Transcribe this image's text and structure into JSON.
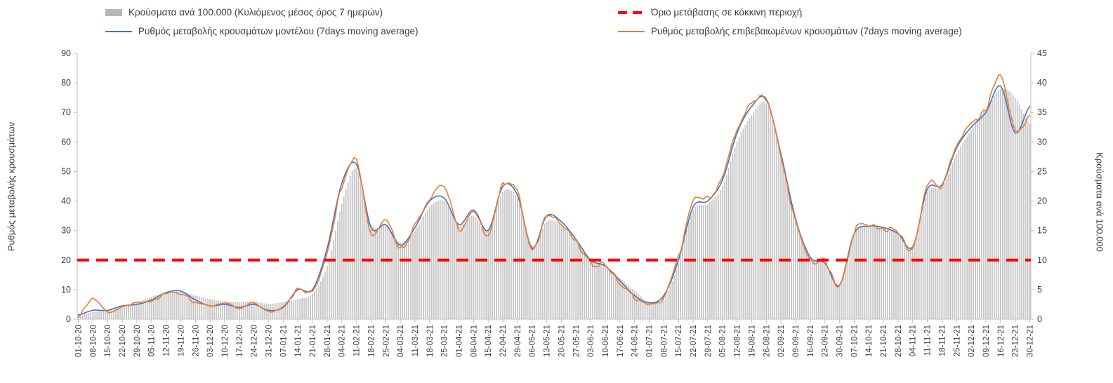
{
  "chart_data": {
    "type": "bar",
    "combo": true,
    "title": "",
    "grid": false,
    "legend_position": "top",
    "x_tick_labels": [
      "01-10-20",
      "08-10-20",
      "15-10-20",
      "22-10-20",
      "29-10-20",
      "05-11-20",
      "12-11-20",
      "19-11-20",
      "26-11-20",
      "03-12-20",
      "10-12-20",
      "17-12-20",
      "24-12-20",
      "31-12-20",
      "07-01-21",
      "14-01-21",
      "21-01-21",
      "28-01-21",
      "04-02-21",
      "11-02-21",
      "18-02-21",
      "25-02-21",
      "04-03-21",
      "11-03-21",
      "18-03-21",
      "25-03-21",
      "01-04-21",
      "08-04-21",
      "15-04-21",
      "22-04-21",
      "29-04-21",
      "06-05-21",
      "13-05-21",
      "20-05-21",
      "27-05-21",
      "03-06-21",
      "10-06-21",
      "17-06-21",
      "24-06-21",
      "01-07-21",
      "08-07-21",
      "15-07-21",
      "22-07-21",
      "29-07-21",
      "05-08-21",
      "12-08-21",
      "19-08-21",
      "26-08-21",
      "02-09-21",
      "09-09-21",
      "16-09-21",
      "23-09-21",
      "30-09-21",
      "07-10-21",
      "14-10-21",
      "21-10-21",
      "28-10-21",
      "04-11-21",
      "11-11-21",
      "18-11-21",
      "25-11-21",
      "02-12-21",
      "09-12-21",
      "16-12-21",
      "23-12-21",
      "30-12-21"
    ],
    "days_per_label": 7,
    "axes": {
      "left": {
        "label": "Ρυθμός μεταβολής κρουσμάτων",
        "min": 0,
        "max": 90,
        "step": 10
      },
      "right": {
        "label": "Κρούσματα ανά 100.000",
        "min": 0,
        "max": 45,
        "step": 5
      }
    },
    "series": [
      {
        "name": "Κρούσματα ανά 100.000 (Κυλιόμενος μέσος όρος 7 ημερών)",
        "type": "bar",
        "axis": "right",
        "color": "#c6c6c6",
        "weekly_values": [
          0.7,
          1.2,
          1.5,
          2.1,
          2.8,
          3.8,
          4.4,
          4.6,
          4,
          3.4,
          3,
          2.9,
          3,
          2.6,
          2.9,
          3.4,
          4.3,
          9,
          19.5,
          25.5,
          16,
          16,
          13,
          15,
          19,
          20,
          16,
          17.5,
          15,
          21.5,
          20.5,
          12.5,
          16.5,
          16,
          13.5,
          10,
          9,
          7,
          4.8,
          3,
          3.6,
          9.5,
          18.5,
          19.5,
          22.5,
          30,
          34.5,
          36.5,
          28,
          17,
          10.5,
          9.5,
          5.8,
          14.5,
          15.7,
          15.5,
          14.5,
          12.3,
          21.5,
          22.5,
          28,
          32,
          35.5,
          39,
          37.5,
          33
        ]
      },
      {
        "name": "Όριο μετάβασης σε κόκκινη περιοχή",
        "type": "threshold",
        "axis": "left",
        "color": "#fe0000",
        "value": 20
      },
      {
        "name": "Ρυθμός μεταβολής κρουσμάτων μοντέλου (7days moving average)",
        "type": "line",
        "axis": "left",
        "color": "#4472c4",
        "weekly_values": [
          1.5,
          3,
          3,
          4.5,
          5,
          6.5,
          9,
          9.5,
          6.5,
          4.5,
          5,
          4,
          5,
          3,
          4,
          10,
          10,
          24,
          46,
          52.5,
          31,
          32,
          25,
          31,
          40,
          41,
          32,
          37,
          30,
          45,
          42,
          24,
          35,
          33,
          27,
          20,
          18,
          13,
          8,
          5.5,
          8,
          20,
          38,
          40,
          47,
          63,
          72,
          74.5,
          56,
          34,
          21,
          19,
          11.5,
          29,
          31.5,
          31,
          29,
          24.5,
          44,
          45.5,
          58,
          65,
          70,
          79,
          63,
          72
        ]
      },
      {
        "name": "Ρυθμός μεταβολής επιβεβαιωμένων κρουσμάτων (7days moving average)",
        "type": "line",
        "axis": "left",
        "color": "#ed7d31",
        "weekly_values": [
          1,
          7,
          2.5,
          4,
          5.5,
          6,
          8.5,
          9,
          6,
          4.5,
          5.5,
          3.5,
          5.5,
          2.5,
          4.5,
          10,
          9.5,
          23,
          45,
          54,
          29,
          34.5,
          24,
          32,
          41,
          45,
          30.5,
          36,
          29,
          45.5,
          43,
          23,
          35.5,
          32,
          26,
          19,
          18.5,
          12,
          7.5,
          5,
          7.5,
          21,
          39.5,
          41,
          48,
          64,
          73,
          74.5,
          55,
          33,
          20,
          19.5,
          11,
          29.5,
          32,
          30.5,
          29.5,
          24,
          45.5,
          45,
          59,
          66,
          71,
          82.5,
          64,
          69
        ]
      }
    ]
  }
}
